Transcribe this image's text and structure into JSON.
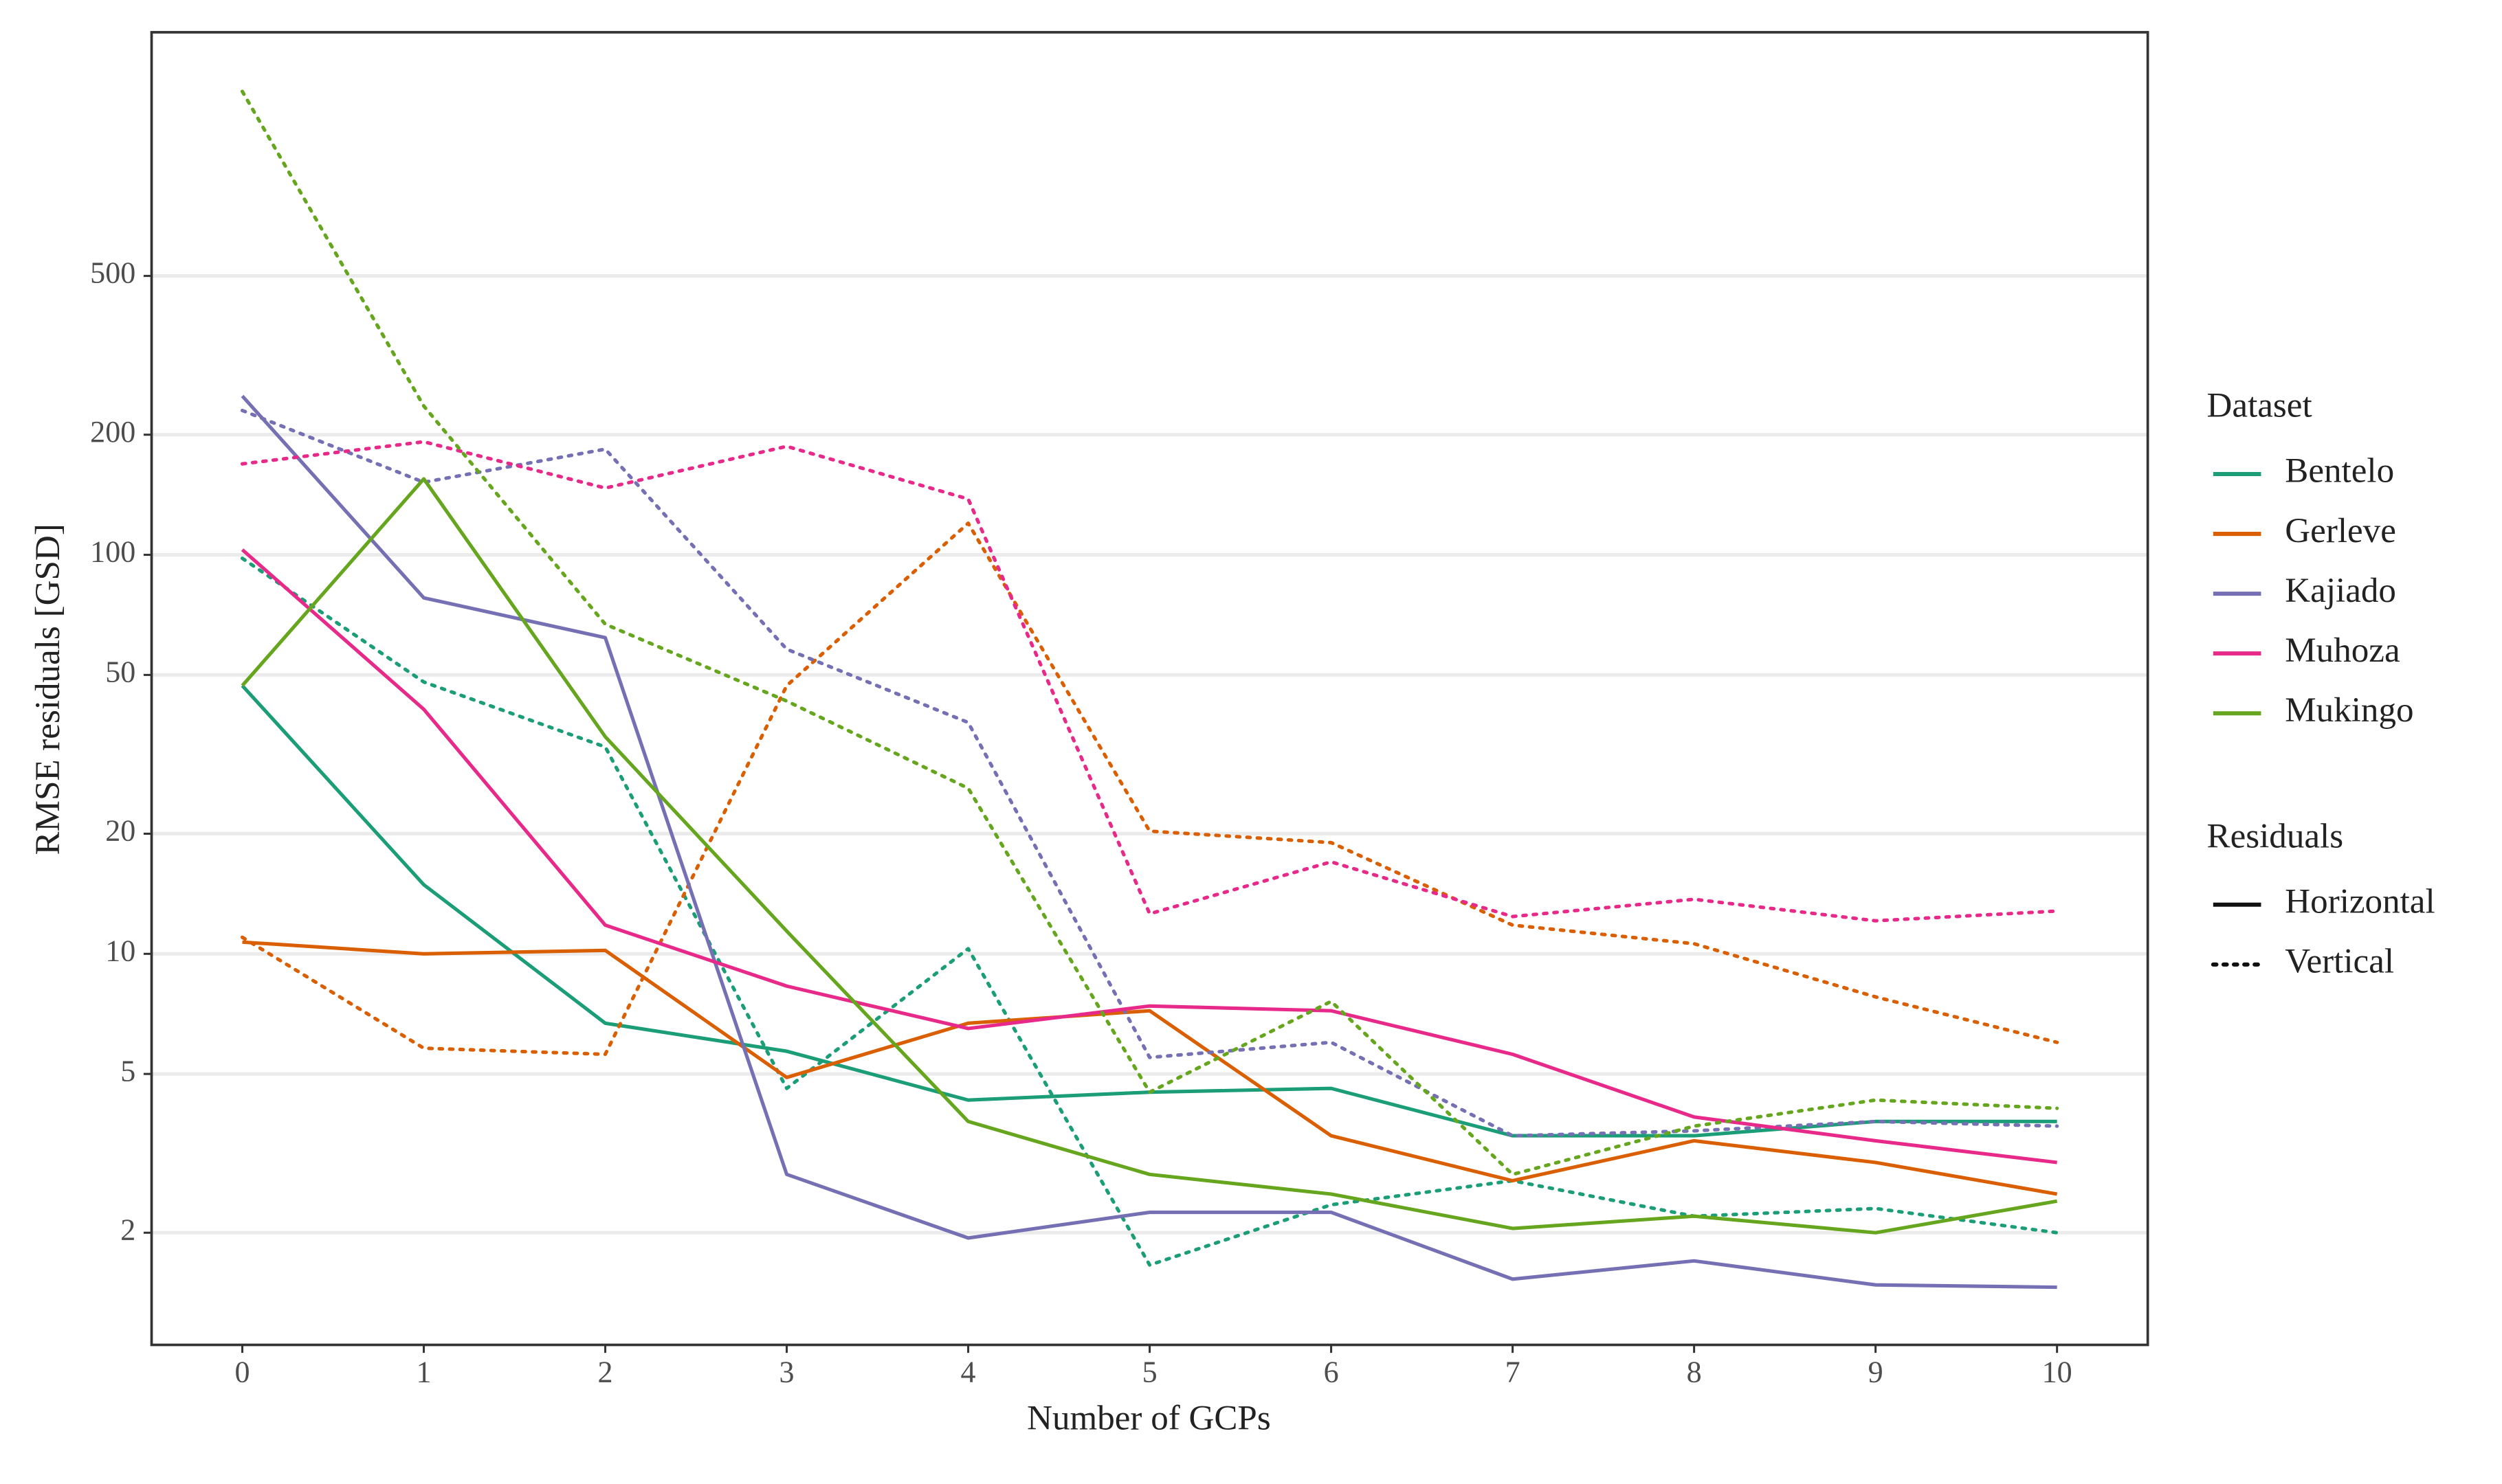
{
  "chart_data": {
    "type": "line",
    "x_label": "Number of GCPs",
    "y_label": "RMSE residuals [GSD]",
    "x": [
      0,
      1,
      2,
      3,
      4,
      5,
      6,
      7,
      8,
      9,
      10
    ],
    "xlim": [
      -0.5,
      10.5
    ],
    "xticks": [
      0,
      1,
      2,
      3,
      4,
      5,
      6,
      7,
      8,
      9,
      10
    ],
    "ylim": [
      1.047,
      2040
    ],
    "yticks": [
      2,
      5,
      10,
      20,
      50,
      100,
      200,
      500
    ],
    "y_log": true,
    "grid": true,
    "legend_position": "right",
    "legend_title": "Dataset",
    "linetype_legend_title": "Residuals",
    "linetypes": [
      {
        "name": "Horizontal",
        "dash": "solid"
      },
      {
        "name": "Vertical",
        "dash": "dotted"
      }
    ],
    "series": [
      {
        "name": "Bentelo",
        "color": "#1b9e77",
        "values": [
          [
            47,
            14.9,
            6.7,
            5.7,
            4.3,
            4.5,
            4.6,
            3.5,
            3.5,
            3.8,
            3.8
          ],
          [
            98,
            48,
            33,
            4.6,
            10.3,
            1.66,
            2.35,
            2.7,
            2.2,
            2.3,
            2.0
          ]
        ]
      },
      {
        "name": "Gerleve",
        "color": "#d95f02",
        "values": [
          [
            10.7,
            10,
            10.2,
            4.9,
            6.7,
            7.2,
            3.5,
            2.7,
            3.4,
            3.0,
            2.5
          ],
          [
            11,
            5.8,
            5.6,
            47,
            120,
            20.3,
            19,
            11.8,
            10.6,
            7.8,
            6.0
          ]
        ]
      },
      {
        "name": "Kajiado",
        "color": "#7570b3",
        "values": [
          [
            250,
            78,
            62,
            2.8,
            1.94,
            2.25,
            2.25,
            1.53,
            1.7,
            1.48,
            1.46
          ],
          [
            230,
            152,
            184,
            58,
            38,
            5.5,
            6.0,
            3.5,
            3.6,
            3.8,
            3.7
          ]
        ]
      },
      {
        "name": "Muhoza",
        "color": "#e7298a",
        "values": [
          [
            103,
            41,
            11.8,
            8.3,
            6.5,
            7.4,
            7.2,
            5.6,
            3.9,
            3.4,
            3.0
          ],
          [
            169,
            192,
            147,
            187,
            138,
            12.6,
            17,
            12.4,
            13.7,
            12.1,
            12.8
          ]
        ]
      },
      {
        "name": "Mukingo",
        "color": "#66a61e",
        "values": [
          [
            47,
            155,
            35,
            11.4,
            3.8,
            2.8,
            2.5,
            2.05,
            2.2,
            2.0,
            2.4
          ],
          [
            1450,
            236,
            67,
            43,
            26,
            4.5,
            7.6,
            2.8,
            3.7,
            4.3,
            4.1
          ]
        ]
      }
    ]
  }
}
